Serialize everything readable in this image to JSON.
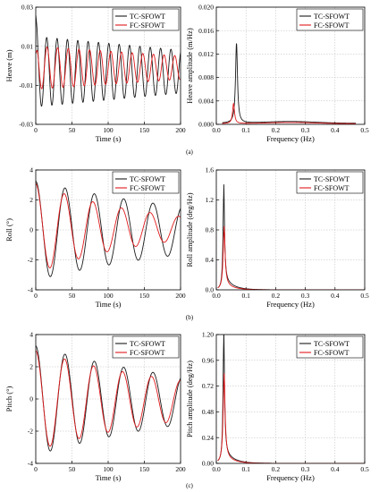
{
  "captions": [
    "(a)",
    "(b)",
    "(c)"
  ],
  "colors": {
    "tc": "#1a1a1a",
    "fc": "#e0191b",
    "grid": "#b8b8b8"
  },
  "chart_data": [
    {
      "type": "line",
      "row": 0,
      "col": 0,
      "xlabel": "Time (s)",
      "ylabel": "Heave (m)",
      "xlim": [
        0,
        200
      ],
      "ylim": [
        -0.03,
        0.03
      ],
      "xticks": [
        "0",
        "50",
        "100",
        "150",
        "200"
      ],
      "yticks": [
        "0.03",
        "0.01",
        "-0.01",
        "-0.03"
      ],
      "ytick_values": [
        0.03,
        0.01,
        -0.01,
        -0.03
      ],
      "grid": true,
      "legend_position": "top-right",
      "series": [
        {
          "name": "TC-SFOWT",
          "kind": "oscill",
          "period": 14.3,
          "amp0": 0.018,
          "ampEnd": 0.011,
          "offset": -0.003,
          "start": 0.026
        },
        {
          "name": "FC-SFOWT",
          "kind": "oscill",
          "period": 14.7,
          "amp0": 0.011,
          "ampEnd": 0.006,
          "offset": -0.001,
          "start": 0.006
        }
      ]
    },
    {
      "type": "line",
      "row": 0,
      "col": 1,
      "xlabel": "Frequency (Hz)",
      "ylabel": "Heave amplitude (m/Hz)",
      "xlim": [
        0,
        0.5
      ],
      "ylim": [
        0,
        0.02
      ],
      "xticks": [
        "0.0",
        "0.1",
        "0.2",
        "0.3",
        "0.4",
        "0.5"
      ],
      "yticks": [
        "0.020",
        "0.016",
        "0.012",
        "0.008",
        "0.004",
        "0.000"
      ],
      "ytick_values": [
        0.02,
        0.016,
        0.012,
        0.008,
        0.004,
        0
      ],
      "grid": true,
      "legend_position": "top-right",
      "series": [
        {
          "name": "TC-SFOWT",
          "kind": "spectrum",
          "peak_f": 0.068,
          "peak": 0.0136,
          "width": 0.004,
          "base": 0.0003,
          "x_from": 0.02,
          "x_to": 0.47
        },
        {
          "name": "FC-SFOWT",
          "kind": "spectrum",
          "peak_f": 0.058,
          "peak": 0.0034,
          "width": 0.004,
          "base": 0.0002,
          "x_from": 0.02,
          "x_to": 0.47
        }
      ]
    },
    {
      "type": "line",
      "row": 1,
      "col": 0,
      "xlabel": "Time (s)",
      "ylabel": "Roll (°)",
      "xlim": [
        0,
        200
      ],
      "ylim": [
        -4,
        4
      ],
      "xticks": [
        "0",
        "50",
        "100",
        "150",
        "200"
      ],
      "yticks": [
        "4",
        "2",
        "0",
        "-2",
        "-4"
      ],
      "ytick_values": [
        4,
        2,
        0,
        -2,
        -4
      ],
      "grid": true,
      "legend_position": "top-right",
      "series": [
        {
          "name": "TC-SFOWT",
          "kind": "decay",
          "period": 40.5,
          "a0": 3.3,
          "a1": 1.6,
          "offset": -0.05
        },
        {
          "name": "FC-SFOWT",
          "kind": "decay",
          "period": 39.5,
          "a0": 3.0,
          "a1": 0.8,
          "offset": 0.1
        }
      ]
    },
    {
      "type": "line",
      "row": 1,
      "col": 1,
      "xlabel": "Frequency (Hz)",
      "ylabel": "Roll amplitude (deg/Hz)",
      "xlim": [
        0,
        0.5
      ],
      "ylim": [
        0,
        1.6
      ],
      "xticks": [
        "0.0",
        "0.1",
        "0.2",
        "0.3",
        "0.4",
        "0.5"
      ],
      "yticks": [
        "1.6",
        "1.2",
        "0.8",
        "0.4",
        "0.0"
      ],
      "ytick_values": [
        1.6,
        1.2,
        0.8,
        0.4,
        0
      ],
      "grid": true,
      "legend_position": "top-right",
      "series": [
        {
          "name": "TC-SFOWT",
          "kind": "spectrum",
          "peak_f": 0.025,
          "peak": 1.27,
          "width": 0.003,
          "base": 0.0,
          "tail": 0.35,
          "x_from": 0.005,
          "x_to": 0.5
        },
        {
          "name": "FC-SFOWT",
          "kind": "spectrum",
          "peak_f": 0.026,
          "peak": 0.78,
          "width": 0.004,
          "base": 0.0,
          "tail": 0.3,
          "x_from": 0.005,
          "x_to": 0.5
        }
      ]
    },
    {
      "type": "line",
      "row": 2,
      "col": 0,
      "xlabel": "Time (s)",
      "ylabel": "Pitch (°)",
      "xlim": [
        0,
        200
      ],
      "ylim": [
        -4,
        4
      ],
      "xticks": [
        "0",
        "50",
        "100",
        "150",
        "200"
      ],
      "yticks": [
        "4",
        "2",
        "0",
        "-2",
        "-4"
      ],
      "ytick_values": [
        4,
        2,
        0,
        -2,
        -4
      ],
      "grid": true,
      "legend_position": "top-right",
      "series": [
        {
          "name": "TC-SFOWT",
          "kind": "decay",
          "period": 40.5,
          "a0": 3.4,
          "a1": 1.5,
          "offset": -0.1
        },
        {
          "name": "FC-SFOWT",
          "kind": "decay",
          "period": 40.0,
          "a0": 3.1,
          "a1": 1.25,
          "offset": -0.1
        }
      ]
    },
    {
      "type": "line",
      "row": 2,
      "col": 1,
      "xlabel": "Frequency (Hz)",
      "ylabel": "Pitch amplitude (deg/Hz)",
      "xlim": [
        0,
        0.5
      ],
      "ylim": [
        0,
        1.2
      ],
      "xticks": [
        "0.0",
        "0.1",
        "0.2",
        "0.3",
        "0.4",
        "0.5"
      ],
      "yticks": [
        "1.20",
        "0.96",
        "0.72",
        "0.48",
        "0.24",
        "0.00"
      ],
      "ytick_values": [
        1.2,
        0.96,
        0.72,
        0.48,
        0.24,
        0
      ],
      "grid": true,
      "legend_position": "top-right",
      "series": [
        {
          "name": "TC-SFOWT",
          "kind": "spectrum",
          "peak_f": 0.025,
          "peak": 1.13,
          "width": 0.003,
          "base": 0.0,
          "tail": 0.3,
          "x_from": 0.005,
          "x_to": 0.5
        },
        {
          "name": "FC-SFOWT",
          "kind": "spectrum",
          "peak_f": 0.026,
          "peak": 0.78,
          "width": 0.004,
          "base": 0.0,
          "tail": 0.26,
          "x_from": 0.005,
          "x_to": 0.5
        }
      ]
    }
  ]
}
